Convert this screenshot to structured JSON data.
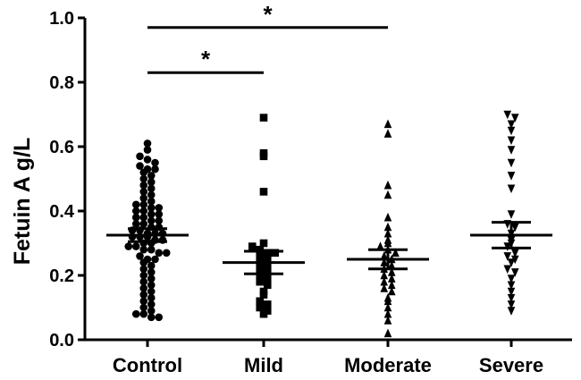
{
  "chart_data": {
    "type": "scatter",
    "ylabel": "Fetuin A g/L",
    "xlabel": "",
    "ylim": [
      0.0,
      1.0
    ],
    "yticks": [
      "0.0",
      "0.2",
      "0.4",
      "0.6",
      "0.8",
      "1.0"
    ],
    "categories": [
      "Control",
      "Mild",
      "Moderate",
      "Severe"
    ],
    "series": [
      {
        "marker": "circle",
        "mean": 0.325,
        "sem_low": 0.305,
        "sem_high": 0.345,
        "values": [
          0.61,
          0.59,
          0.57,
          0.56,
          0.55,
          0.54,
          0.53,
          0.53,
          0.52,
          0.51,
          0.5,
          0.49,
          0.48,
          0.47,
          0.46,
          0.45,
          0.44,
          0.43,
          0.42,
          0.42,
          0.41,
          0.41,
          0.4,
          0.4,
          0.39,
          0.39,
          0.38,
          0.38,
          0.37,
          0.37,
          0.36,
          0.36,
          0.35,
          0.35,
          0.34,
          0.34,
          0.33,
          0.33,
          0.33,
          0.32,
          0.32,
          0.32,
          0.31,
          0.31,
          0.3,
          0.3,
          0.29,
          0.29,
          0.28,
          0.28,
          0.27,
          0.27,
          0.26,
          0.25,
          0.25,
          0.24,
          0.23,
          0.22,
          0.21,
          0.2,
          0.19,
          0.18,
          0.17,
          0.16,
          0.15,
          0.14,
          0.13,
          0.12,
          0.11,
          0.1,
          0.09,
          0.08,
          0.08,
          0.07,
          0.07
        ]
      },
      {
        "marker": "square",
        "mean": 0.24,
        "sem_low": 0.205,
        "sem_high": 0.275,
        "values": [
          0.69,
          0.58,
          0.57,
          0.46,
          0.3,
          0.29,
          0.28,
          0.27,
          0.27,
          0.26,
          0.25,
          0.24,
          0.23,
          0.22,
          0.21,
          0.2,
          0.19,
          0.18,
          0.17,
          0.15,
          0.14,
          0.12,
          0.11,
          0.1,
          0.09,
          0.08
        ]
      },
      {
        "marker": "triangle-up",
        "mean": 0.25,
        "sem_low": 0.22,
        "sem_high": 0.28,
        "values": [
          0.67,
          0.64,
          0.48,
          0.45,
          0.38,
          0.35,
          0.33,
          0.31,
          0.3,
          0.29,
          0.28,
          0.27,
          0.26,
          0.25,
          0.24,
          0.23,
          0.22,
          0.21,
          0.2,
          0.19,
          0.18,
          0.17,
          0.16,
          0.15,
          0.13,
          0.12,
          0.1,
          0.08,
          0.06,
          0.02
        ]
      },
      {
        "marker": "triangle-down",
        "mean": 0.325,
        "sem_low": 0.285,
        "sem_high": 0.365,
        "values": [
          0.7,
          0.69,
          0.67,
          0.65,
          0.62,
          0.59,
          0.55,
          0.51,
          0.47,
          0.39,
          0.36,
          0.35,
          0.33,
          0.31,
          0.3,
          0.29,
          0.27,
          0.26,
          0.25,
          0.24,
          0.22,
          0.21,
          0.19,
          0.17,
          0.15,
          0.13,
          0.11,
          0.09
        ]
      }
    ],
    "significance": [
      {
        "from": "Control",
        "to": "Moderate",
        "level": 0.97,
        "label": "*"
      },
      {
        "from": "Control",
        "to": "Mild",
        "level": 0.83,
        "label": "*"
      }
    ]
  }
}
